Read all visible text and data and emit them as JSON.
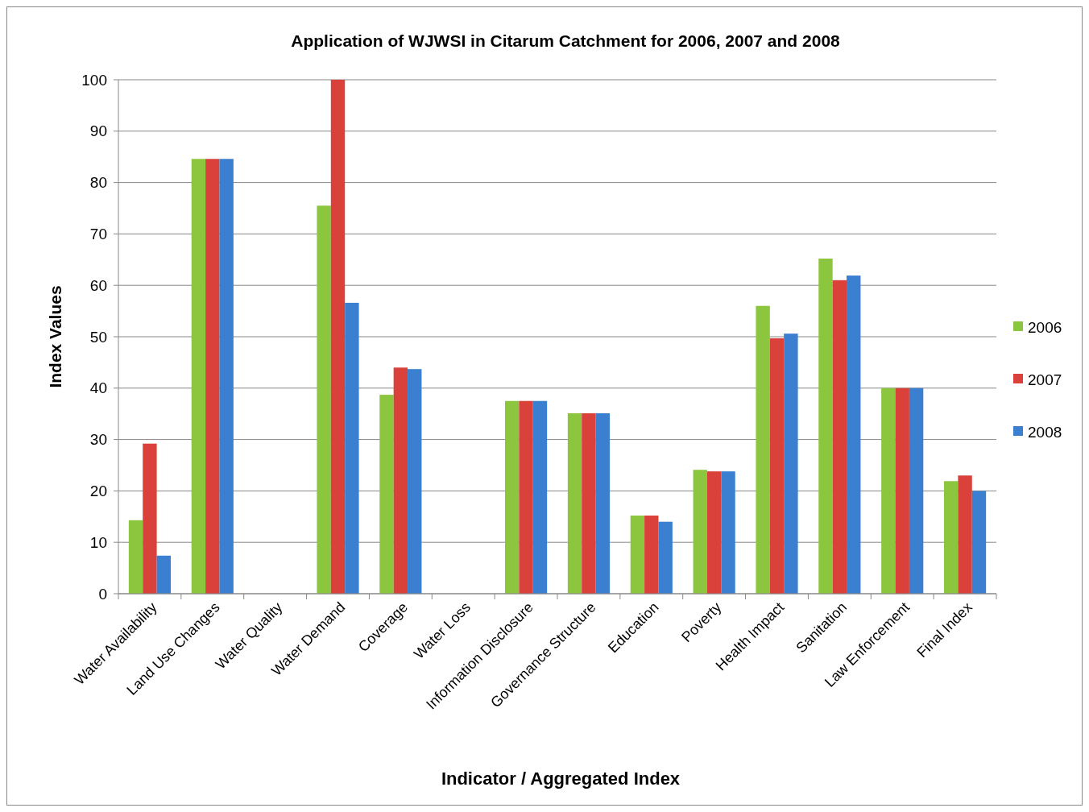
{
  "chart_data": {
    "type": "bar",
    "title": "Application of WJWSI in Citarum Catchment for 2006, 2007 and 2008",
    "xlabel": "Indicator / Aggregated Index",
    "ylabel": "Index Values",
    "categories": [
      "Water Availability",
      "Land Use Changes",
      "Water Quality",
      "Water Demand",
      "Coverage",
      "Water Loss",
      "Information Disclosure",
      "Governance Structure",
      "Education",
      "Poverty",
      "Health Impact",
      "Sanitation",
      "Law Enforcement",
      "Final Index"
    ],
    "series": [
      {
        "name": "2006",
        "color": "#8cc63e",
        "values": [
          14.3,
          84.6,
          0,
          75.5,
          38.7,
          0,
          37.5,
          35.1,
          15.2,
          24.1,
          56,
          65.2,
          40,
          21.9
        ]
      },
      {
        "name": "2007",
        "color": "#d9413a",
        "values": [
          29.2,
          84.6,
          0,
          100,
          44,
          0,
          37.5,
          35.1,
          15.2,
          23.8,
          49.7,
          61,
          40,
          23
        ]
      },
      {
        "name": "2008",
        "color": "#3a7fd0",
        "values": [
          7.4,
          84.6,
          0,
          56.6,
          43.7,
          0,
          37.5,
          35.1,
          14,
          23.8,
          50.6,
          61.9,
          40,
          20
        ]
      }
    ],
    "ylim": [
      0,
      100
    ],
    "yticks": [
      0,
      10,
      20,
      30,
      40,
      50,
      60,
      70,
      80,
      90,
      100
    ],
    "grid": "y",
    "legend": "right"
  }
}
